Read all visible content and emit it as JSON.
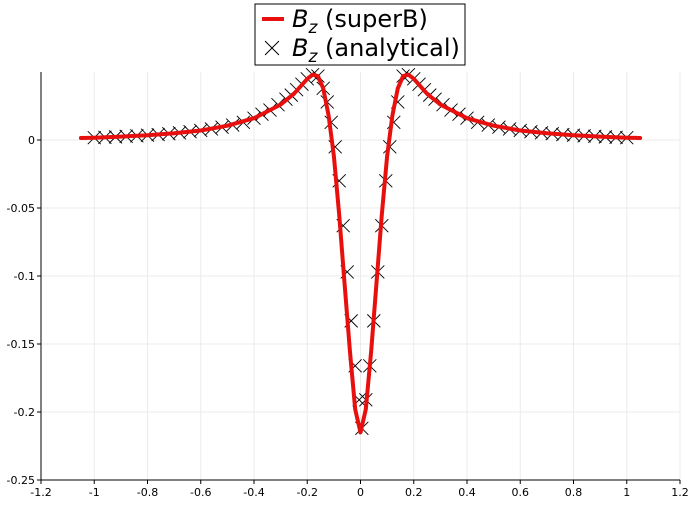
{
  "chart_data": {
    "type": "line",
    "title": "",
    "xlabel": "",
    "ylabel": "",
    "xlim": [
      -1.2,
      1.2
    ],
    "ylim": [
      -0.25,
      0.05
    ],
    "x_ticks": [
      -1.2,
      -1,
      -0.8,
      -0.6,
      -0.4,
      -0.2,
      0,
      0.2,
      0.4,
      0.6,
      0.8,
      1,
      1.2
    ],
    "x_tick_labels": [
      "-1.2",
      "-1",
      "-0.8",
      "-0.6",
      "-0.4",
      "-0.2",
      "0",
      "0.2",
      "0.4",
      "0.6",
      "0.8",
      "1",
      "1.2"
    ],
    "y_ticks": [
      0,
      -0.05,
      -0.1,
      -0.15,
      -0.2,
      -0.25
    ],
    "y_tick_labels": [
      "0",
      "-0.05",
      "-0.1",
      "-0.15",
      "-0.2",
      "-0.25"
    ],
    "grid": true,
    "legend_position": "top-center",
    "colors": {
      "superB": "#e8100e",
      "analytical": "#000000",
      "grid": "#ebebeb"
    },
    "series": [
      {
        "name": "B_z (superB)",
        "legend_main": "B",
        "legend_sub": "z",
        "legend_rest": " (superB)",
        "style": "line",
        "x": [
          -1.05,
          -1.0,
          -0.9,
          -0.8,
          -0.7,
          -0.6,
          -0.5,
          -0.4,
          -0.3,
          -0.25,
          -0.2,
          -0.18,
          -0.16,
          -0.14,
          -0.12,
          -0.1,
          -0.08,
          -0.06,
          -0.04,
          -0.02,
          0,
          0.02,
          0.04,
          0.06,
          0.08,
          0.1,
          0.12,
          0.14,
          0.16,
          0.18,
          0.2,
          0.25,
          0.3,
          0.4,
          0.5,
          0.6,
          0.7,
          0.8,
          0.9,
          1.0,
          1.05
        ],
        "y": [
          0.0015,
          0.0017,
          0.0025,
          0.0035,
          0.005,
          0.007,
          0.0105,
          0.016,
          0.026,
          0.034,
          0.045,
          0.048,
          0.047,
          0.038,
          0.018,
          -0.012,
          -0.055,
          -0.105,
          -0.155,
          -0.198,
          -0.215,
          -0.198,
          -0.155,
          -0.105,
          -0.055,
          -0.012,
          0.018,
          0.038,
          0.047,
          0.048,
          0.045,
          0.034,
          0.026,
          0.016,
          0.0105,
          0.007,
          0.005,
          0.0035,
          0.0025,
          0.0017,
          0.0015
        ]
      },
      {
        "name": "B_z (analytical)",
        "legend_main": "B",
        "legend_sub": "z",
        "legend_rest": " (analytical)",
        "style": "markers",
        "marker": "x",
        "x": [
          -1.0,
          -0.96,
          -0.92,
          -0.88,
          -0.84,
          -0.8,
          -0.76,
          -0.72,
          -0.68,
          -0.64,
          -0.6,
          -0.56,
          -0.52,
          -0.48,
          -0.44,
          -0.4,
          -0.37,
          -0.34,
          -0.31,
          -0.28,
          -0.26,
          -0.24,
          -0.22,
          -0.2,
          -0.18,
          -0.16,
          -0.14,
          -0.125,
          -0.11,
          -0.095,
          -0.08,
          -0.065,
          -0.05,
          -0.035,
          -0.02,
          -0.005,
          0.005,
          0.02,
          0.035,
          0.05,
          0.065,
          0.08,
          0.095,
          0.11,
          0.125,
          0.14,
          0.16,
          0.18,
          0.2,
          0.22,
          0.24,
          0.26,
          0.28,
          0.31,
          0.34,
          0.37,
          0.4,
          0.44,
          0.48,
          0.52,
          0.56,
          0.6,
          0.64,
          0.68,
          0.72,
          0.76,
          0.8,
          0.84,
          0.88,
          0.92,
          0.96,
          1.0
        ],
        "y": [
          0.0017,
          0.002,
          0.0023,
          0.0027,
          0.0031,
          0.0035,
          0.004,
          0.0046,
          0.0053,
          0.0061,
          0.007,
          0.0081,
          0.0094,
          0.011,
          0.013,
          0.016,
          0.019,
          0.022,
          0.026,
          0.03,
          0.033,
          0.037,
          0.041,
          0.045,
          0.048,
          0.047,
          0.038,
          0.028,
          0.013,
          -0.005,
          -0.03,
          -0.063,
          -0.097,
          -0.133,
          -0.166,
          -0.191,
          -0.212,
          -0.191,
          -0.166,
          -0.133,
          -0.097,
          -0.063,
          -0.03,
          -0.005,
          0.013,
          0.028,
          0.047,
          0.048,
          0.045,
          0.041,
          0.037,
          0.033,
          0.03,
          0.026,
          0.022,
          0.019,
          0.016,
          0.013,
          0.011,
          0.0094,
          0.0081,
          0.007,
          0.0061,
          0.0053,
          0.0046,
          0.004,
          0.0035,
          0.0031,
          0.0027,
          0.0023,
          0.002,
          0.0017
        ]
      }
    ]
  }
}
